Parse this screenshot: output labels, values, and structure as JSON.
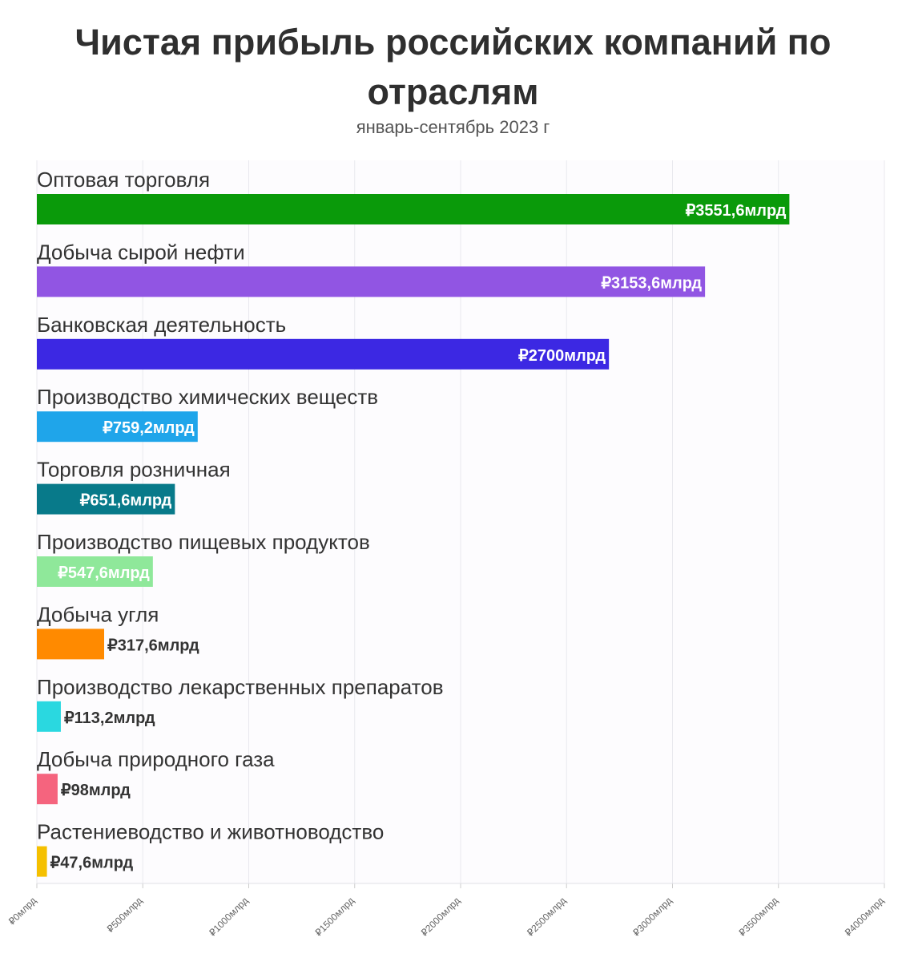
{
  "title": "Чистая прибыль российских компаний по отраслям",
  "subtitle": "январь-сентябрь 2023 г",
  "chart_data": {
    "type": "bar",
    "orientation": "horizontal",
    "xlim": [
      0,
      4000
    ],
    "xticks": [
      "₽0млрд",
      "₽500млрд",
      "₽1000млрд",
      "₽1500млрд",
      "₽2000млрд",
      "₽2500млрд",
      "₽3000млрд",
      "₽3500млрд",
      "₽4000млрд"
    ],
    "grid": true,
    "categories": [
      "Оптовая торговля",
      "Добыча сырой нефти",
      "Банковская деятельность",
      "Производство химических веществ",
      "Торговля розничная",
      "Производство пищевых продуктов",
      "Добыча угля",
      "Производство лекарственных препаратов",
      "Добыча природного газа",
      "Растениеводство и животноводство"
    ],
    "values": [
      3551.6,
      3153.6,
      2700,
      759.2,
      651.6,
      547.6,
      317.6,
      113.2,
      98,
      47.6
    ],
    "value_labels": [
      "₽3551,6млрд",
      "₽3153,6млрд",
      "₽2700млрд",
      "₽759,2млрд",
      "₽651,6млрд",
      "₽547,6млрд",
      "₽317,6млрд",
      "₽113,2млрд",
      "₽98млрд",
      "₽47,6млрд"
    ],
    "colors": [
      "#0a9a0a",
      "#9155e3",
      "#3c28e3",
      "#1fa5ea",
      "#087a8a",
      "#8fe89a",
      "#ff8a00",
      "#2ad8e0",
      "#f5647e",
      "#f5c000"
    ]
  }
}
